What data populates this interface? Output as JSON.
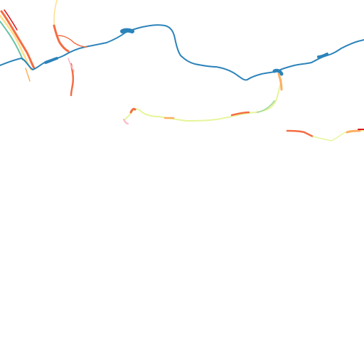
{
  "map": {
    "background": "#ffffff",
    "palette": {
      "main_river": "#2b83ba",
      "high": "#d7191c",
      "mid_high": "#f46d43",
      "mid": "#fdae61",
      "low": "#fee08b",
      "very_low": "#e6f598",
      "cool": "#abdda4",
      "teal": "#66c2a5"
    },
    "layers": [
      {
        "name": "main-river",
        "color_key": "main_river"
      },
      {
        "name": "tributary-northwest",
        "color_key": "mid_high"
      },
      {
        "name": "tributary-center",
        "color_key": "very_low"
      },
      {
        "name": "tributary-east",
        "color_key": "very_low"
      }
    ]
  }
}
